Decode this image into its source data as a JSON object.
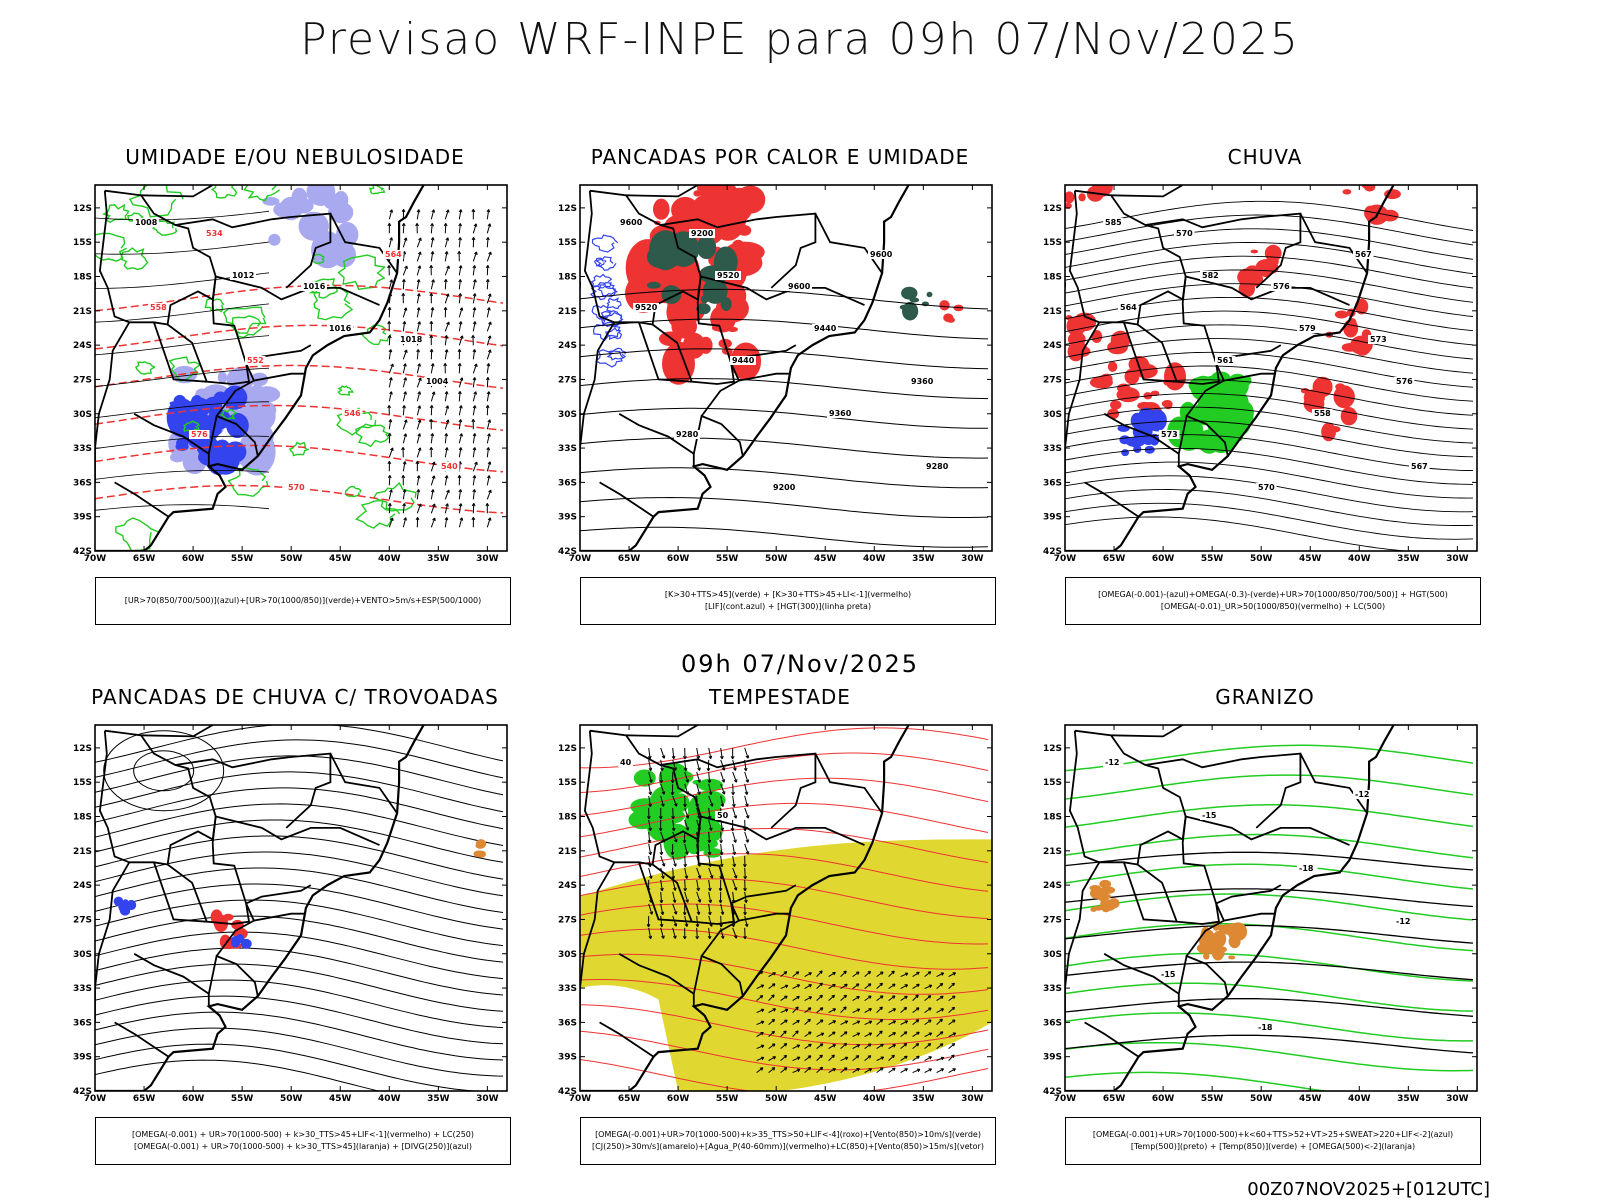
{
  "header": {
    "title": "Previsao WRF-INPE  para 09h 07/Nov/2025",
    "mid_title": "09h 07/Nov/2025",
    "run_label": "00Z07NOV2025+[012UTC]"
  },
  "axes": {
    "lat_labels": [
      "12S",
      "15S",
      "18S",
      "21S",
      "24S",
      "27S",
      "30S",
      "33S",
      "36S",
      "39S",
      "42S"
    ],
    "lon_labels": [
      "70W",
      "65W",
      "60W",
      "55W",
      "50W",
      "45W",
      "40W",
      "35W",
      "30W"
    ]
  },
  "panels": [
    {
      "id": "umidade",
      "title": "UMIDADE E/OU NEBULOSIDADE",
      "legend": [
        "[UR>70(850/700/500)](azul)+[UR>70(1000/850)](verde)+VENTO>5m/s+ESP(500/1000)"
      ],
      "contour_labels": [
        "1008",
        "1012",
        "1016",
        "1004",
        "576",
        "570",
        "564",
        "558",
        "552",
        "546",
        "540",
        "534",
        "1016",
        "1018"
      ]
    },
    {
      "id": "pancadas-calor",
      "title": "PANCADAS POR CALOR E UMIDADE",
      "legend": [
        "[K>30+TTS>45](verde) + [K>30+TTS>45+LI<-1](vermelho)",
        "[LIF](cont.azul) + [HGT(300)](linha preta)"
      ],
      "contour_labels": [
        "9600",
        "9520",
        "9440",
        "9360",
        "9280",
        "9200",
        "9600",
        "9520",
        "9440",
        "9360",
        "9280",
        "9200",
        "9600"
      ]
    },
    {
      "id": "chuva",
      "title": "CHUVA",
      "legend": [
        "[OMEGA(-0.001)-(azul)+OMEGA(-0.3)-(verde)+UR>70(1000/850/700/500)] + HGT(500)",
        "[OMEGA(-0.01)_UR>50(1000/850)(vermelho) + LC(500)"
      ],
      "contour_labels": [
        "585",
        "582",
        "579",
        "576",
        "573",
        "570",
        "567",
        "564",
        "561",
        "558",
        "567",
        "570",
        "576",
        "573"
      ]
    },
    {
      "id": "pancadas-trovoadas",
      "title": "PANCADAS DE CHUVA C/ TROVOADAS",
      "legend": [
        "[OMEGA(-0.001) + UR>70(1000-500) + k>30_TTS>45+LIF<-1](vermelho) + LC(250)",
        "[OMEGA(-0.001) + UR>70(1000-500) + k>30_TTS>45](laranja) + [DIVG(250)](azul)"
      ],
      "contour_labels": []
    },
    {
      "id": "tempestade",
      "title": "TEMPESTADE",
      "legend": [
        "[OMEGA(-0.001)+UR>70(1000-500)+k>35_TTS>50+LIF<-4](roxo)+[Vento(850)>10m/s](verde)",
        "[CJ(250)>30m/s](amarelo)+[Agua_P(40-60mm)](vermelho)+LC(850)+[Vento(850)>15m/s](vetor)"
      ],
      "contour_labels": [
        "40",
        "50"
      ]
    },
    {
      "id": "granizo",
      "title": "GRANIZO",
      "legend": [
        "[OMEGA(-0.001)+UR>70(1000-500)+k<60+TTS>52+VT>25+SWEAT>220+LIF<-2](azul)",
        "[Temp(500)](preto) + [Temp(850)](verde) + [OMEGA(500)<-2](laranja)"
      ],
      "contour_labels": [
        "-12",
        "-15",
        "-18",
        "-12",
        "-15",
        "-18",
        "-12"
      ]
    }
  ],
  "colors": {
    "blue": "#3344ee",
    "lightblue": "#a9a9ef",
    "green": "#22cc22",
    "darkgreen": "#2d5a4a",
    "red": "#ee3333",
    "orange": "#dd8833",
    "yellow": "#e0d830",
    "black": "#000000"
  }
}
